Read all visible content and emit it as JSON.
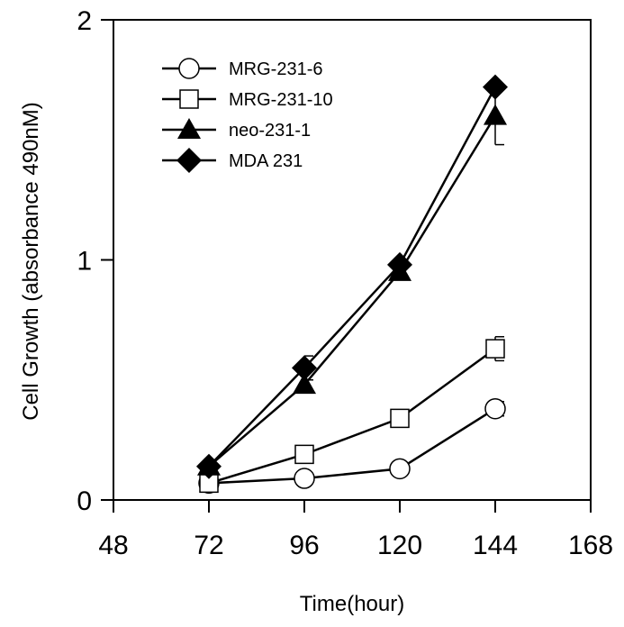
{
  "chart_data": {
    "type": "line",
    "title": "",
    "xlabel": "Time(hour)",
    "ylabel": "Cell Growth (absorbance 490nM)",
    "xlim": [
      48,
      168
    ],
    "ylim": [
      0,
      2
    ],
    "x_ticks": [
      "48",
      "72",
      "96",
      "120",
      "144",
      "168"
    ],
    "y_ticks": [
      "0",
      "1",
      "2"
    ],
    "grid": false,
    "legend_position": "top-left",
    "x": [
      72,
      96,
      120,
      144
    ],
    "series": [
      {
        "name": "MRG-231-6",
        "marker": "open-circle",
        "values": [
          0.07,
          0.09,
          0.13,
          0.38
        ],
        "errors": [
          0.0,
          0.0,
          0.0,
          0.03
        ]
      },
      {
        "name": "MRG-231-10",
        "marker": "open-square",
        "values": [
          0.07,
          0.19,
          0.34,
          0.63
        ],
        "errors": [
          0.0,
          0.0,
          0.0,
          0.05
        ]
      },
      {
        "name": "neo-231-1",
        "marker": "filled-triangle",
        "values": [
          0.14,
          0.48,
          0.95,
          1.6
        ],
        "errors": [
          0.0,
          0.0,
          0.02,
          0.12
        ]
      },
      {
        "name": "MDA 231",
        "marker": "filled-diamond",
        "values": [
          0.14,
          0.55,
          0.98,
          1.72
        ],
        "errors": [
          0.0,
          0.05,
          0.0,
          0.0
        ]
      }
    ]
  }
}
